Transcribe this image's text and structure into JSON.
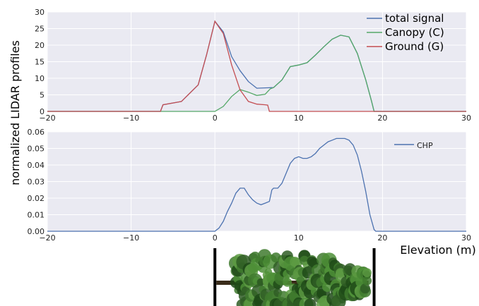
{
  "figure": {
    "ylabel": "normalized LIDAR profiles",
    "xlabel": "Elevation (m)"
  },
  "chart_data": [
    {
      "type": "line",
      "xlim": [
        -20,
        30
      ],
      "ylim": [
        0,
        30
      ],
      "xticks": [
        "−20",
        "−10",
        "0",
        "10",
        "20",
        "30"
      ],
      "yticks": [
        "0",
        "5",
        "10",
        "15",
        "20",
        "25",
        "30"
      ],
      "grid": true,
      "legend_placement": "top-right",
      "series": [
        {
          "name": "total signal",
          "color": "#4c72b0",
          "x": [
            -20,
            -6.5,
            -6.2,
            -4,
            -2,
            -1,
            0,
            1,
            2,
            3,
            4,
            5,
            6,
            7,
            8,
            9,
            10,
            11,
            12,
            13,
            14,
            15,
            16,
            17,
            18,
            18.7,
            19,
            30
          ],
          "y": [
            0,
            0,
            2.0,
            3.0,
            8,
            17,
            27.2,
            24,
            16.5,
            12.3,
            9,
            7.0,
            7.1,
            7.2,
            9.5,
            13.5,
            14.0,
            14.7,
            17.0,
            19.5,
            21.8,
            23.0,
            22.5,
            17.5,
            9.5,
            3,
            0,
            0
          ]
        },
        {
          "name": "Canopy (C)",
          "color": "#55a868",
          "x": [
            -20,
            0,
            1,
            2,
            3,
            4,
            5,
            6,
            6.6,
            7,
            8,
            9,
            10,
            11,
            12,
            13,
            14,
            15,
            16,
            17,
            18,
            18.7,
            19,
            30
          ],
          "y": [
            0,
            0,
            1.5,
            4.5,
            6.6,
            5.8,
            4.8,
            5.2,
            6.8,
            7.2,
            9.5,
            13.5,
            14.0,
            14.7,
            17.0,
            19.5,
            21.8,
            23.0,
            22.5,
            17.5,
            9.5,
            3,
            0,
            0
          ]
        },
        {
          "name": "Ground (G)",
          "color": "#c44e52",
          "x": [
            -20,
            -6.5,
            -6.2,
            -4,
            -2,
            -1,
            0,
            1,
            2,
            3,
            4,
            5,
            6,
            6.3,
            6.5,
            30
          ],
          "y": [
            0,
            0,
            2.0,
            3.0,
            8,
            17,
            27.2,
            23.5,
            14.0,
            6.5,
            3.0,
            2.2,
            2.0,
            1.9,
            0,
            0
          ]
        }
      ]
    },
    {
      "type": "line",
      "xlim": [
        -20,
        30
      ],
      "ylim": [
        0,
        0.06
      ],
      "xticks": [
        "−20",
        "−10",
        "0",
        "10",
        "20",
        "30"
      ],
      "yticks": [
        "0.00",
        "0.01",
        "0.02",
        "0.03",
        "0.04",
        "0.05",
        "0.06"
      ],
      "grid": true,
      "legend_placement": "top-right",
      "series": [
        {
          "name": "CHP",
          "color": "#4c72b0",
          "x": [
            -20,
            0,
            0.5,
            1,
            1.5,
            2,
            2.5,
            3,
            3.5,
            4,
            4.5,
            5,
            5.5,
            6,
            6.5,
            6.8,
            7.0,
            7.5,
            8,
            8.5,
            9,
            9.5,
            10,
            10.5,
            11,
            11.5,
            12,
            12.5,
            13,
            13.5,
            14,
            14.5,
            15,
            15.5,
            16,
            16.5,
            17,
            17.5,
            18,
            18.5,
            19,
            19.2,
            30
          ],
          "y": [
            0,
            0,
            0.002,
            0.006,
            0.012,
            0.017,
            0.023,
            0.026,
            0.026,
            0.022,
            0.019,
            0.017,
            0.016,
            0.017,
            0.018,
            0.025,
            0.026,
            0.026,
            0.029,
            0.035,
            0.041,
            0.044,
            0.045,
            0.044,
            0.044,
            0.045,
            0.047,
            0.05,
            0.052,
            0.054,
            0.055,
            0.056,
            0.056,
            0.056,
            0.055,
            0.052,
            0.046,
            0.036,
            0.024,
            0.01,
            0.001,
            0,
            0
          ]
        }
      ]
    }
  ],
  "tree_image": {
    "description_icon": "tree-icon",
    "canopy_color": "#2f5d24",
    "trunk_color": "#3a2c1a"
  }
}
